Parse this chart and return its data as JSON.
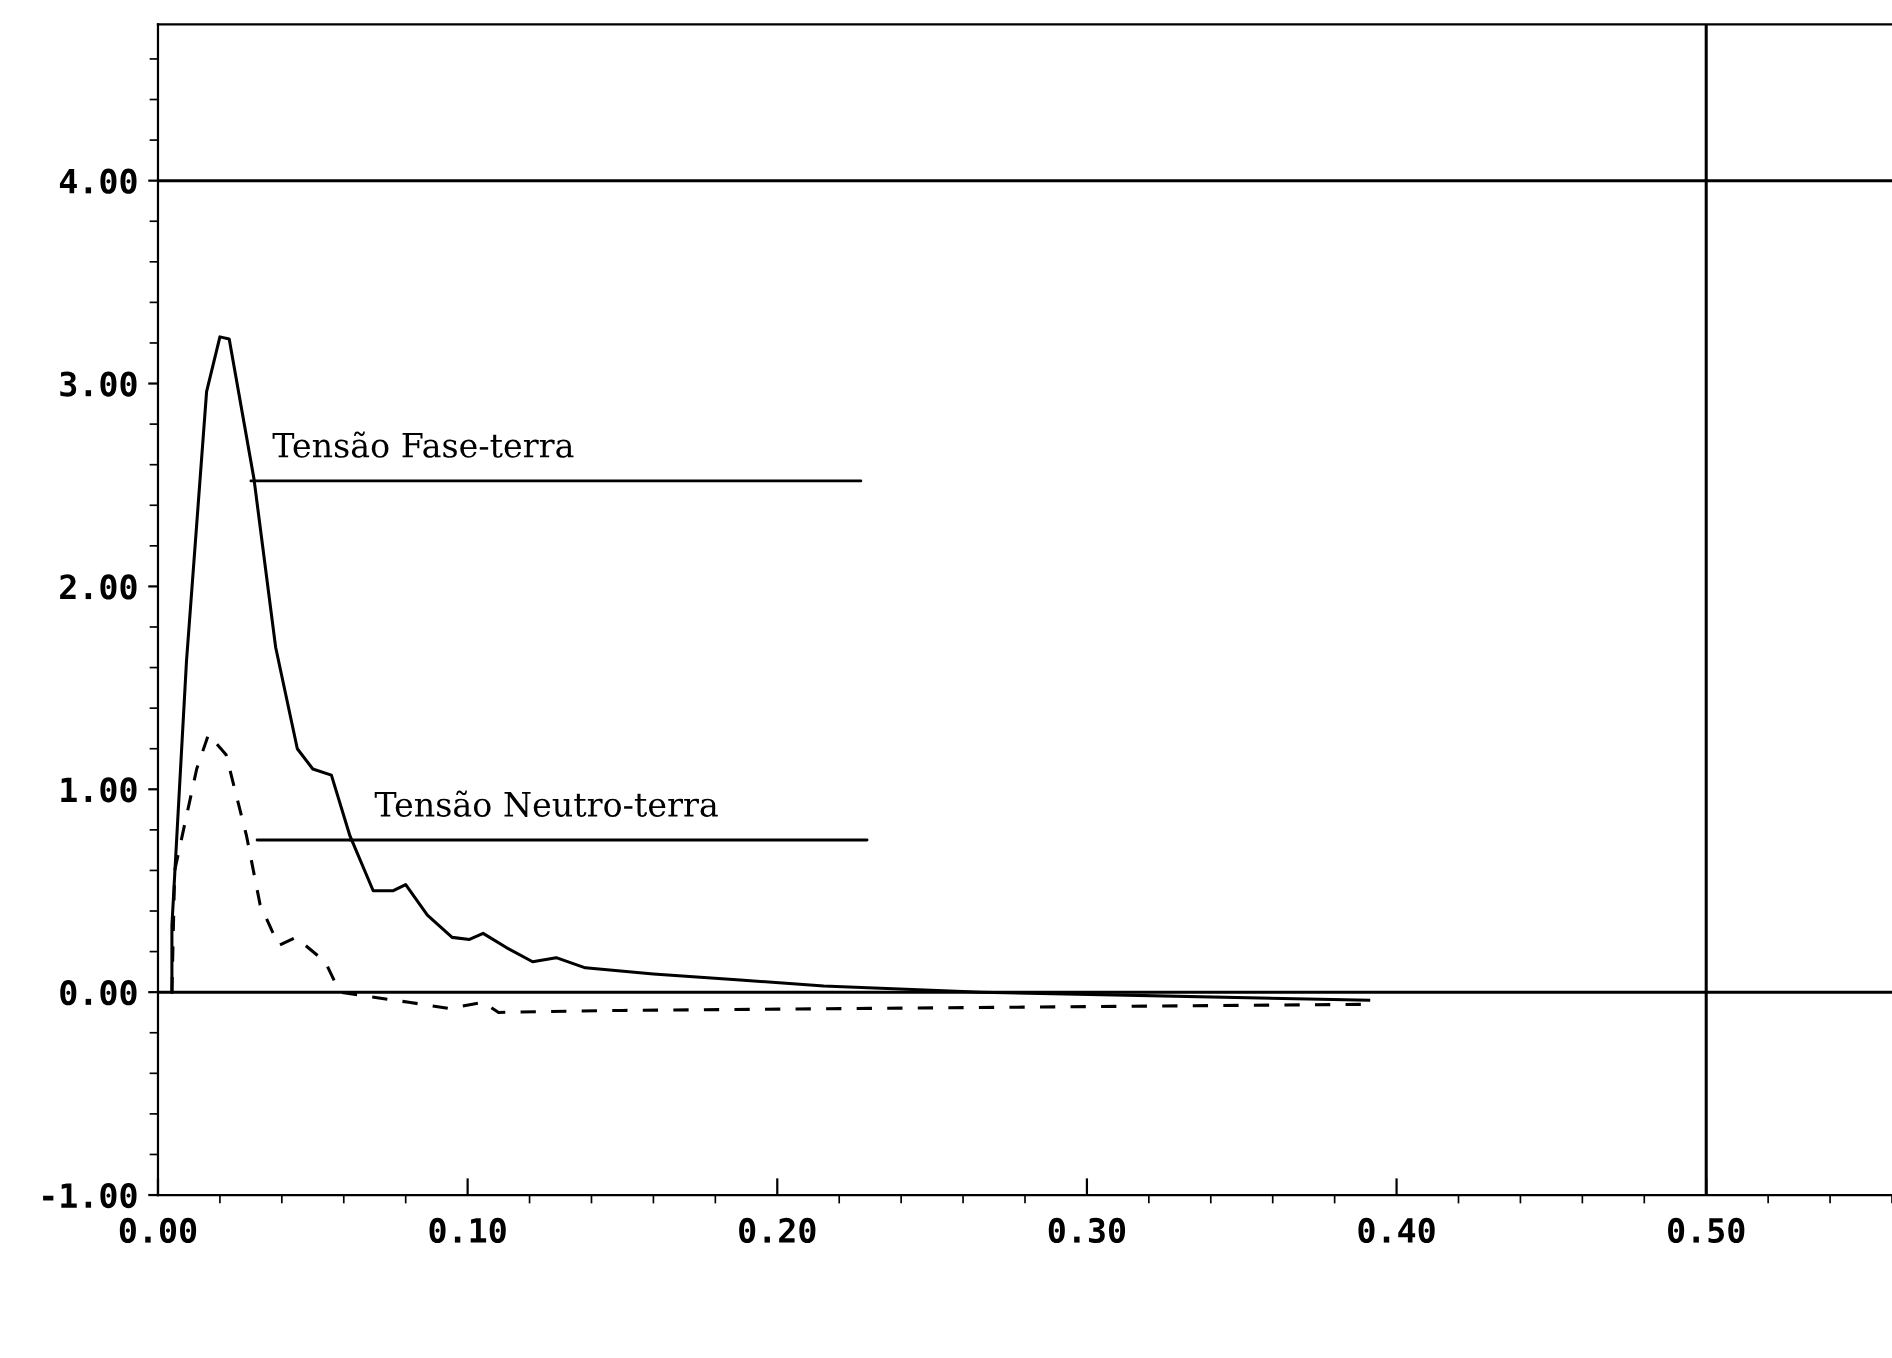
{
  "chart_data": {
    "type": "line",
    "xlim": [
      0,
      0.56
    ],
    "ylim": [
      -1,
      4.77
    ],
    "xticks": [
      {
        "value": 0,
        "label": "0.00"
      },
      {
        "value": 0.1,
        "label": "0.10"
      },
      {
        "value": 0.2,
        "label": "0.20"
      },
      {
        "value": 0.3,
        "label": "0.30"
      },
      {
        "value": 0.4,
        "label": "0.40"
      },
      {
        "value": 0.5,
        "label": "0.50"
      }
    ],
    "yticks": [
      {
        "value": -1,
        "label": "-1.00"
      },
      {
        "value": 0,
        "label": "0.00"
      },
      {
        "value": 1,
        "label": "1.00"
      },
      {
        "value": 2,
        "label": "2.00"
      },
      {
        "value": 3,
        "label": "3.00"
      },
      {
        "value": 4,
        "label": "4.00"
      }
    ],
    "grid": false,
    "marker": "none",
    "series": [
      {
        "color": "#000000",
        "line_style": "solid",
        "x": [
          0.0045,
          0.0045,
          0.0092,
          0.0157,
          0.02,
          0.023,
          0.031,
          0.038,
          0.045,
          0.05,
          0.056,
          0.062,
          0.0695,
          0.076,
          0.08,
          0.087,
          0.095,
          0.1006,
          0.105,
          0.1125,
          0.121,
          0.1286,
          0.138,
          0.16,
          0.188,
          0.215,
          0.266,
          0.391
        ],
        "values": [
          0,
          0.33,
          1.63,
          2.96,
          3.23,
          3.22,
          2.53,
          1.7,
          1.2,
          1.1,
          1.07,
          0.77,
          0.5,
          0.5,
          0.53,
          0.38,
          0.27,
          0.26,
          0.29,
          0.22,
          0.15,
          0.17,
          0.12,
          0.09,
          0.06,
          0.03,
          0.0,
          -0.04
        ]
      },
      {
        "color": "#000000",
        "line_style": "dashed",
        "x": [
          0.0045,
          0.0054,
          0.0125,
          0.0163,
          0.022,
          0.0286,
          0.033,
          0.039,
          0.0445,
          0.054,
          0.0587,
          0.081,
          0.094,
          0.105,
          0.11,
          0.15,
          0.23,
          0.39
        ],
        "values": [
          0,
          0.6,
          1.1,
          1.27,
          1.17,
          0.77,
          0.43,
          0.23,
          0.27,
          0.15,
          0.0,
          -0.05,
          -0.08,
          -0.05,
          -0.1,
          -0.09,
          -0.08,
          -0.06
        ]
      }
    ],
    "ref_lines": [
      {
        "axis": "y",
        "value": 4,
        "color": "#000000"
      },
      {
        "axis": "y",
        "value": 0,
        "color": "#000000"
      },
      {
        "axis": "x",
        "value": 0.5,
        "color": "#000000"
      }
    ],
    "annotations": [
      {
        "text": "Tensão Fase-terra",
        "x": 0.03,
        "y": 2.52
      },
      {
        "text": "Tensão Neutro-terra",
        "x": 0.062,
        "y": 0.75
      }
    ]
  }
}
